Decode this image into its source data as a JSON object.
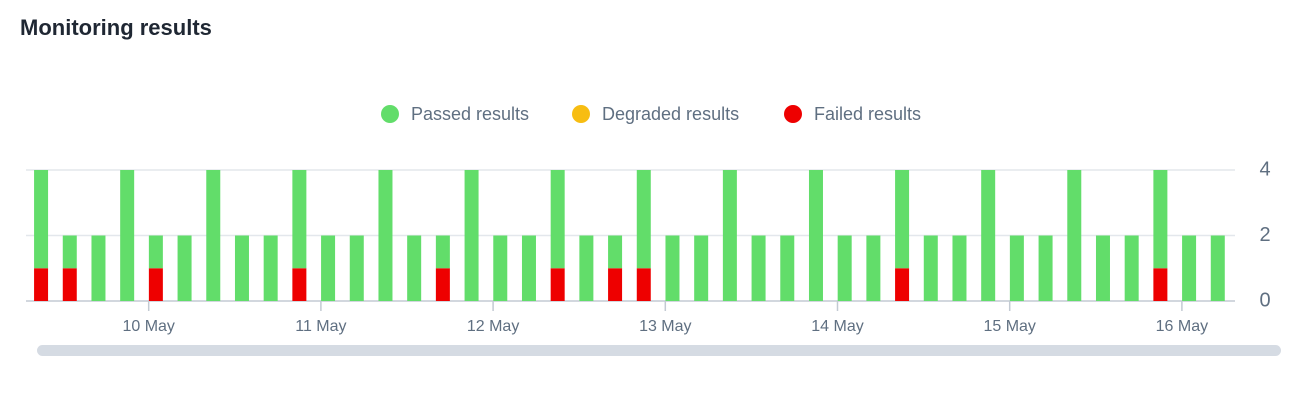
{
  "chart_data": {
    "type": "stacked-bar",
    "title": "Monitoring results",
    "x": [
      -15,
      -11,
      -7,
      -3,
      1,
      5,
      9,
      13,
      17,
      21,
      25,
      29,
      33,
      37,
      41,
      45,
      49,
      53,
      57,
      61,
      65,
      69,
      73,
      77,
      81,
      85,
      89,
      93,
      97,
      101,
      105,
      109,
      113,
      117,
      121,
      125,
      129,
      133,
      137,
      141,
      145,
      149
    ],
    "series": [
      {
        "name": "Failed results",
        "color": "#ee0000",
        "values": [
          1,
          1,
          0,
          0,
          1,
          0,
          0,
          0,
          0,
          1,
          0,
          0,
          0,
          0,
          1,
          0,
          0,
          0,
          1,
          0,
          1,
          1,
          0,
          0,
          0,
          0,
          0,
          0,
          0,
          0,
          1,
          0,
          0,
          0,
          0,
          0,
          0,
          0,
          0,
          1,
          0,
          0
        ]
      },
      {
        "name": "Degraded results",
        "color": "#f7bd12",
        "values": [
          0,
          0,
          0,
          0,
          0,
          0,
          0,
          0,
          0,
          0,
          0,
          0,
          0,
          0,
          0,
          0,
          0,
          0,
          0,
          0,
          0,
          0,
          0,
          0,
          0,
          0,
          0,
          0,
          0,
          0,
          0,
          0,
          0,
          0,
          0,
          0,
          0,
          0,
          0,
          0,
          0,
          0
        ]
      },
      {
        "name": "Passed results",
        "color": "#62dd6a",
        "values": [
          3,
          1,
          2,
          4,
          1,
          2,
          4,
          2,
          2,
          3,
          2,
          2,
          4,
          2,
          1,
          4,
          2,
          2,
          3,
          2,
          1,
          3,
          2,
          2,
          4,
          2,
          2,
          4,
          2,
          2,
          3,
          2,
          2,
          4,
          2,
          2,
          4,
          2,
          2,
          3,
          2,
          2
        ]
      }
    ],
    "legend_order": [
      2,
      1,
      0
    ],
    "xlim": [
      -17.1,
      151.4
    ],
    "xticks": [
      {
        "value": 0,
        "label": "10 May"
      },
      {
        "value": 24,
        "label": "11 May"
      },
      {
        "value": 48,
        "label": "12 May"
      },
      {
        "value": 72,
        "label": "13 May"
      },
      {
        "value": 96,
        "label": "14 May"
      },
      {
        "value": 120,
        "label": "15 May"
      },
      {
        "value": 144,
        "label": "16 May"
      }
    ],
    "ylim": [
      0,
      4
    ],
    "yticks": [
      0,
      2,
      4
    ],
    "grid": true
  }
}
